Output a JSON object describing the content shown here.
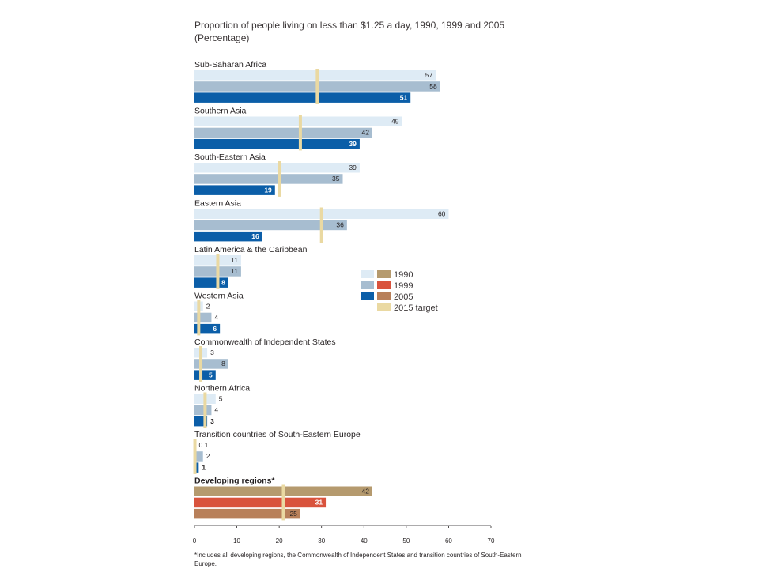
{
  "chart_data": {
    "type": "bar",
    "orientation": "horizontal",
    "title": "Proportion of people living on less than $1.25 a day, 1990, 1999 and 2005",
    "subtitle": "(Percentage)",
    "xlim": [
      0,
      70
    ],
    "xticks": [
      "0",
      "10",
      "20",
      "30",
      "40",
      "50",
      "60",
      "70"
    ],
    "legend_position": "right",
    "legend": [
      {
        "name": "1990",
        "color": "#b59a6e"
      },
      {
        "name": "1999",
        "color": "#d9533d"
      },
      {
        "name": "2005",
        "color": "#b8805a"
      },
      {
        "name": "2015 target",
        "color": "#ead9a2"
      }
    ],
    "colors": {
      "regional_1990": "#deebf5",
      "regional_1999": "#a7bdd0",
      "regional_2005": "#0b5ea8",
      "developing_1990": "#b59a6e",
      "developing_1999": "#d9533d",
      "developing_2005": "#b8805a",
      "target": "#ead9a2"
    },
    "groups": [
      {
        "name": "Sub-Saharan Africa",
        "values": [
          57,
          58,
          51
        ],
        "labels": [
          "57",
          "58",
          "51"
        ],
        "target": 29
      },
      {
        "name": "Southern Asia",
        "values": [
          49,
          42,
          39
        ],
        "labels": [
          "49",
          "42",
          "39"
        ],
        "target": 25
      },
      {
        "name": "South-Eastern Asia",
        "values": [
          39,
          35,
          19
        ],
        "labels": [
          "39",
          "35",
          "19"
        ],
        "target": 20
      },
      {
        "name": "Eastern Asia",
        "values": [
          60,
          36,
          16
        ],
        "labels": [
          "60",
          "36",
          "16"
        ],
        "target": 30
      },
      {
        "name": "Latin America & the Caribbean",
        "values": [
          11,
          11,
          8
        ],
        "labels": [
          "11",
          "11",
          "8"
        ],
        "target": 5.5
      },
      {
        "name": "Western Asia",
        "values": [
          2,
          4,
          6
        ],
        "labels": [
          "2",
          "4",
          "6"
        ],
        "target": 1
      },
      {
        "name": "Commonwealth of Independent States",
        "values": [
          3,
          8,
          5
        ],
        "labels": [
          "3",
          "8",
          "5"
        ],
        "target": 1.5
      },
      {
        "name": "Northern Africa",
        "values": [
          5,
          4,
          3
        ],
        "labels": [
          "5",
          "4",
          "3"
        ],
        "target": 2.5
      },
      {
        "name": "Transition countries of South-Eastern Europe",
        "values": [
          0.1,
          2,
          1
        ],
        "labels": [
          "0.1",
          "2",
          "1"
        ],
        "target": 0.1
      },
      {
        "name": "Developing regions*",
        "values": [
          42,
          31,
          25
        ],
        "labels": [
          "42",
          "31",
          "25"
        ],
        "target": 21,
        "developing": true
      }
    ],
    "footnote": "*Includes all developing regions, the Commonwealth of Independent States and transition countries of South-Eastern Europe."
  }
}
